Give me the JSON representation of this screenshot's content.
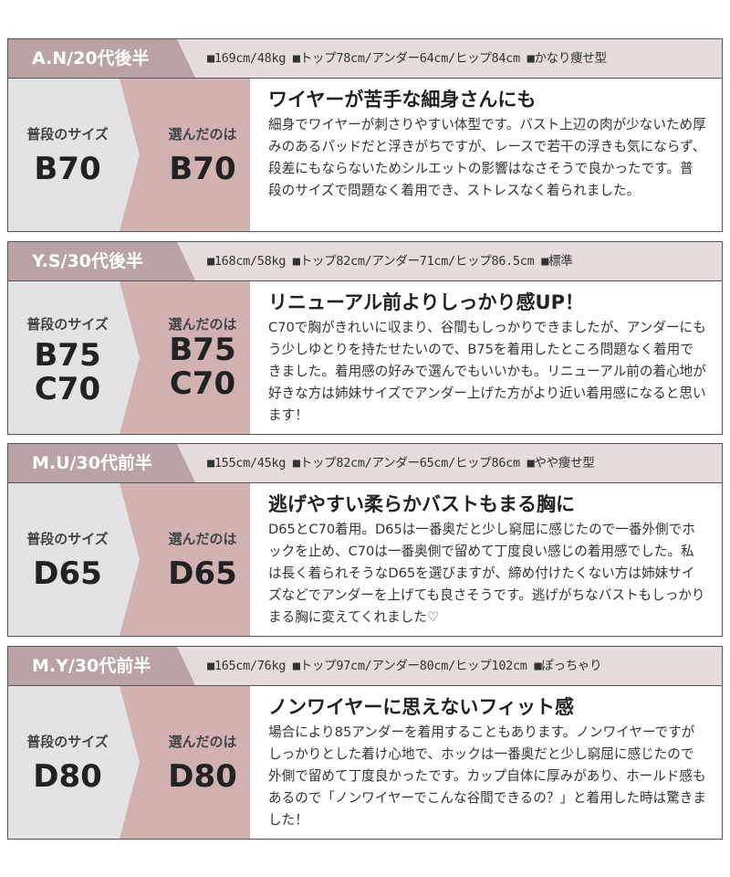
{
  "labels": {
    "usual": "普段のサイズ",
    "chosen": "選んだのは"
  },
  "reviews": [
    {
      "name": "A.N/20代後半",
      "stats": "■169cm/48kg ■トップ78cm/アンダー64cm/ヒップ84cm ■かなり痩せ型",
      "usual": [
        "B70"
      ],
      "chosen": [
        "B70"
      ],
      "title": "ワイヤーが苦手な細身さんにも",
      "body": "細身でワイヤーが刺さりやすい体型です。バスト上辺の肉が少ないため厚みのあるパッドだと浮きがちですが、レースで若干の浮きも気にならず、段差にもならないためシルエットの影響はなさそうで良かったです。普段のサイズで問題なく着用でき、ストレスなく着られました。"
    },
    {
      "name": "Y.S/30代後半",
      "stats": "■168cm/58kg ■トップ82cm/アンダー71cm/ヒップ86.5cm ■標準",
      "usual": [
        "B75",
        "C70"
      ],
      "chosen": [
        "B75",
        "C70"
      ],
      "title": "リニューアル前よりしっかり感UP！",
      "body": "C70で胸がきれいに収まり、谷間もしっかりできましたが、アンダーにもう少しゆとりを持たせたいので、B75を着用したところ問題なく着用できました。着用感の好みで選んでもいいかも。リニューアル前の着心地が好きな方は姉妹サイズでアンダー上げた方がより近い着用感になると思います！"
    },
    {
      "name": "M.U/30代前半",
      "stats": "■155cm/45kg ■トップ82cm/アンダー65cm/ヒップ86cm ■やや痩せ型",
      "usual": [
        "D65"
      ],
      "chosen": [
        "D65"
      ],
      "title": "逃げやすい柔らかバストもまる胸に",
      "body": "D65とC70着用。D65は一番奥だと少し窮屈に感じたので一番外側でホックを止め、C70は一番奥側で留めて丁度良い感じの着用感でした。私は長く着られそうなD65を選びますが、締め付けたくない方は姉妹サイズなどでアンダーを上げても良さそうです。逃げがちなバストもしっかりまる胸に変えてくれました♡"
    },
    {
      "name": "M.Y/30代前半",
      "stats": "■165cm/76kg ■トップ97cm/アンダー80cm/ヒップ102cm ■ぽっちゃり",
      "usual": [
        "D80"
      ],
      "chosen": [
        "D80"
      ],
      "title": "ノンワイヤーに思えないフィット感",
      "body": "場合により85アンダーを着用することもあります。ノンワイヤーですがしっかりとした着け心地で、ホックは一番奥だと少し窮屈に感じたので外側で留めて丁度良かったです。カップ自体に厚みがあり、ホールド感もあるので「ノンワイヤーでこんな谷間できるの？」と着用した時は驚きました！"
    }
  ]
}
